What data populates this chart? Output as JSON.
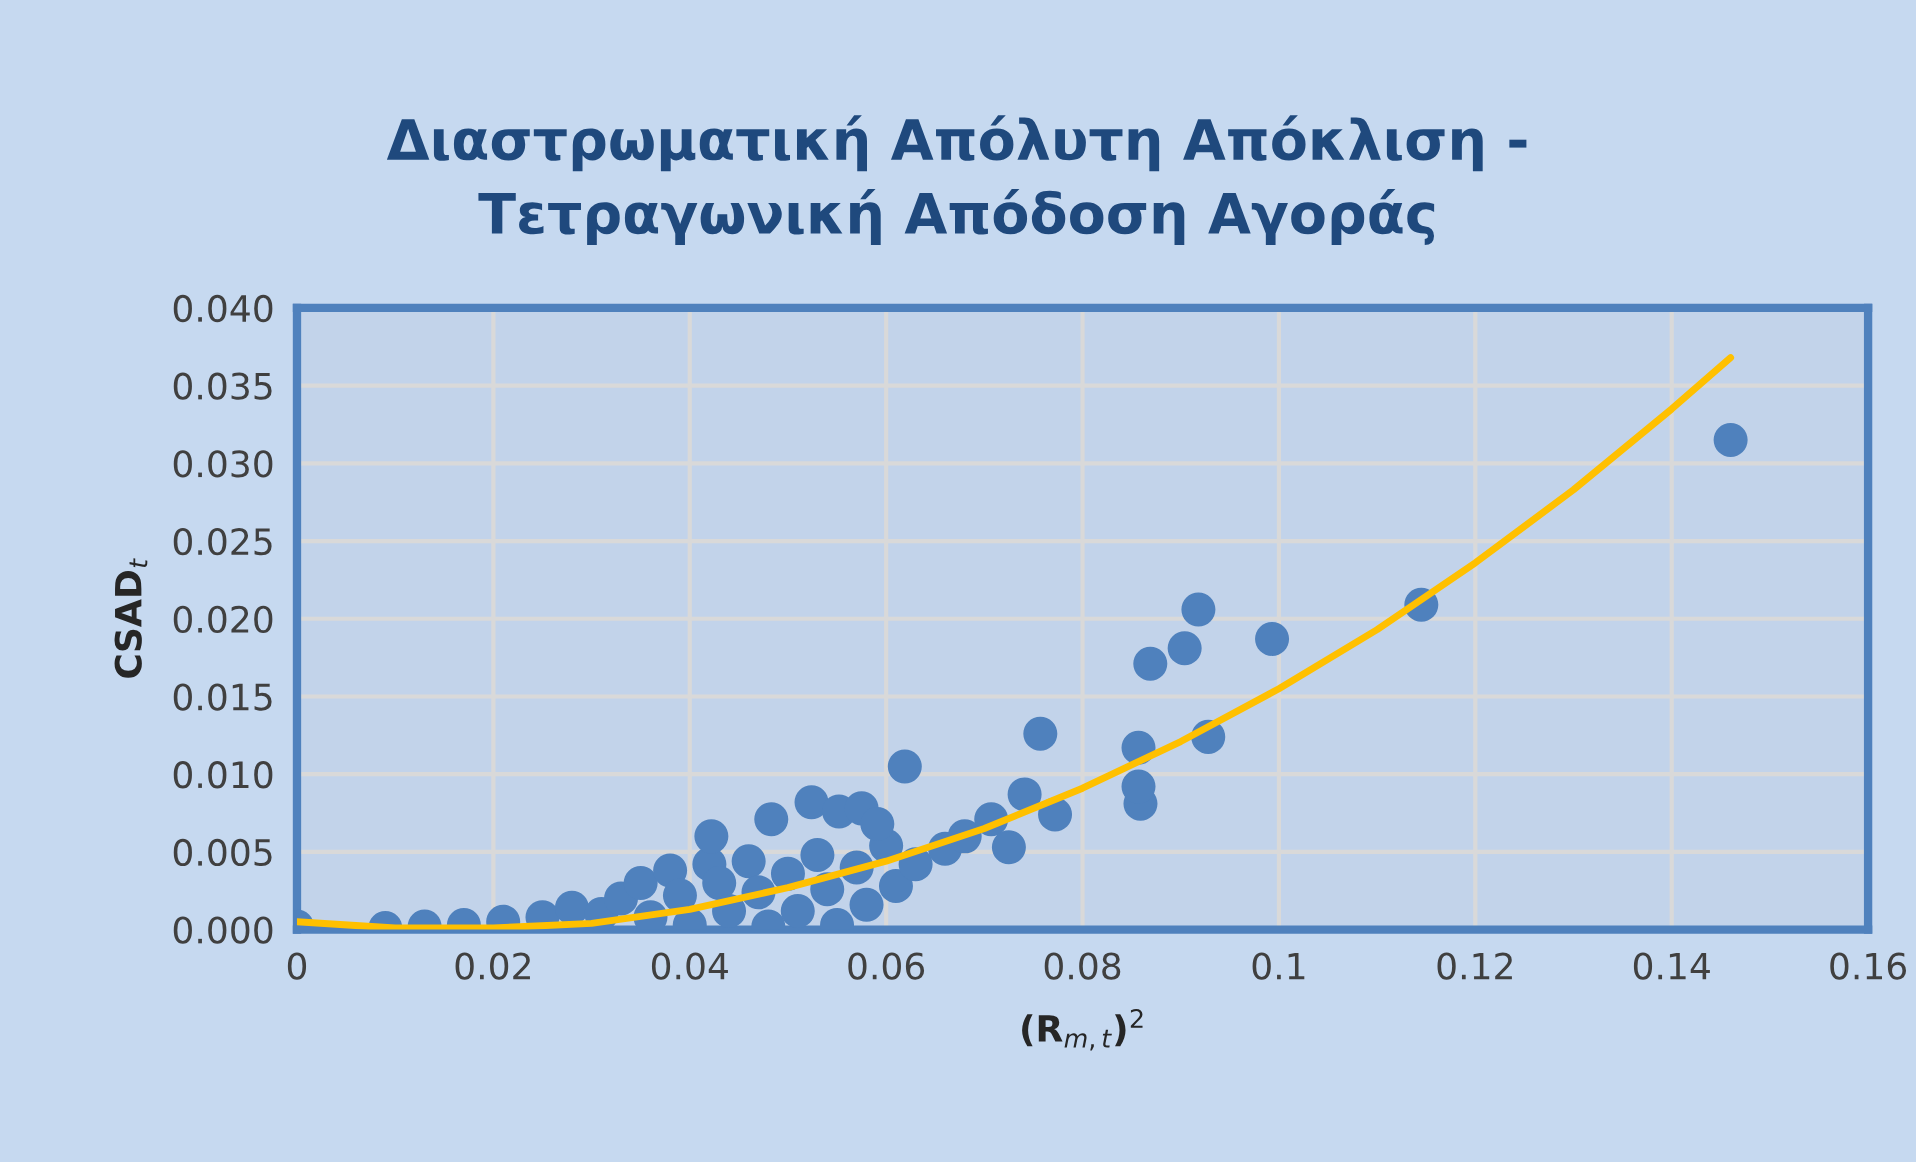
{
  "chart_data": {
    "type": "scatter",
    "title": "Διαστρωματική Απόλυτη Απόκλιση -\nΤετραγωνική Απόδοση Αγοράς",
    "xlabel": "(R$_{m,t}$)$^{2}$",
    "ylabel": "CSAD$_{t}$",
    "xlim": [
      0,
      0.16
    ],
    "xticks": [
      0,
      0.02,
      0.04,
      0.06,
      0.08,
      0.1,
      0.12,
      0.14,
      0.16
    ],
    "ylim": [
      0,
      0.04
    ],
    "yticks": [
      {
        "value": 0,
        "label": "0.000"
      },
      {
        "value": 0.005,
        "label": "0.005"
      },
      {
        "value": 0.01,
        "label": "0.010"
      },
      {
        "value": 0.015,
        "label": "0.015"
      },
      {
        "value": 0.02,
        "label": "0.020"
      },
      {
        "value": 0.025,
        "label": "0.025"
      },
      {
        "value": 0.03,
        "label": "0.030"
      },
      {
        "value": 0.035,
        "label": "0.035"
      },
      {
        "value": 0.04,
        "label": "0.040"
      }
    ],
    "grid": true,
    "series": [
      {
        "color": "#4f81bd",
        "marker": "circle",
        "x": [
          0,
          0.009,
          0.013,
          0.017,
          0.021,
          0.025,
          0.028,
          0.031,
          0.033,
          0.035,
          0.036,
          0.038,
          0.039,
          0.04,
          0.042,
          0.043,
          0.044,
          0.046,
          0.047,
          0.048,
          0.05,
          0.051,
          0.053,
          0.054,
          0.055,
          0.057,
          0.058,
          0.06,
          0.061,
          0.063,
          0.066,
          0.068,
          0.0707,
          0.0725,
          0.0483,
          0.0422,
          0.0524,
          0.0552,
          0.0575,
          0.0591,
          0.0619,
          0.0741,
          0.0757,
          0.0772,
          0.0857,
          0.0859,
          0.0857,
          0.0869,
          0.0904,
          0.0918,
          0.0928,
          0.0993,
          0.1145,
          0.146
        ],
        "values": [
          0.0002,
          0.0001,
          0.0002,
          0.0003,
          0.0005,
          0.0008,
          0.0014,
          0.001,
          0.002,
          0.003,
          0.0008,
          0.0038,
          0.0022,
          0.0003,
          0.0042,
          0.003,
          0.0012,
          0.0044,
          0.0024,
          0.0002,
          0.0036,
          0.0012,
          0.0048,
          0.0026,
          0.0003,
          0.004,
          0.0016,
          0.0054,
          0.0028,
          0.0042,
          0.0052,
          0.006,
          0.0071,
          0.0053,
          0.0071,
          0.006,
          0.0082,
          0.0076,
          0.0078,
          0.0068,
          0.0105,
          0.0087,
          0.0126,
          0.0074,
          0.0117,
          0.0081,
          0.0092,
          0.0171,
          0.0181,
          0.0206,
          0.0124,
          0.0187,
          0.0209,
          0.0315
        ]
      },
      {
        "type": "line",
        "color": "#ffc000",
        "x": [
          0,
          0.01,
          0.02,
          0.03,
          0.04,
          0.05,
          0.06,
          0.07,
          0.08,
          0.09,
          0.1,
          0.11,
          0.12,
          0.13,
          0.14,
          0.146
        ],
        "values": [
          0.0005,
          0.0001,
          0.0001,
          0.0004,
          0.0013,
          0.0027,
          0.0044,
          0.0065,
          0.0091,
          0.0121,
          0.0155,
          0.0193,
          0.0236,
          0.0283,
          0.0335,
          0.0368
        ]
      }
    ]
  }
}
